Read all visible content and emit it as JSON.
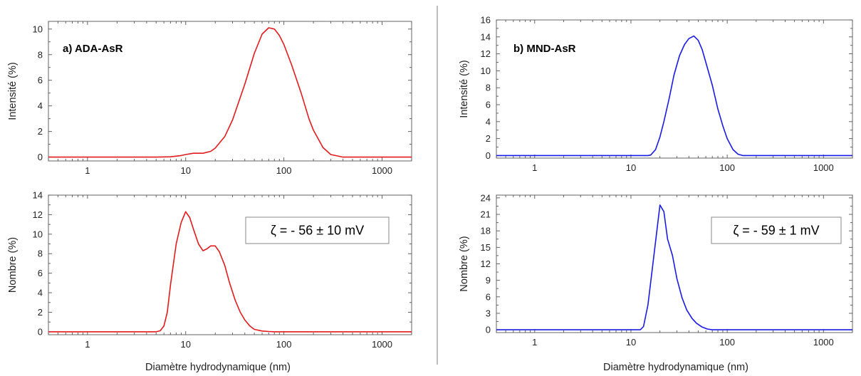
{
  "figure": {
    "xlabel_left": "Diamètre hydrodynamique (nm)",
    "xlabel_right": "Diamètre hydrodynamique (nm)"
  },
  "chart_data": [
    {
      "id": "a-intensity",
      "type": "line",
      "title": "a) ADA-AsR",
      "xlabel": "",
      "ylabel": "Intensité (%)",
      "xscale": "log",
      "xlim": [
        0.4,
        2000
      ],
      "ylim": [
        -0.3,
        10.6
      ],
      "xticks": [
        1,
        10,
        100,
        1000
      ],
      "yticks": [
        0,
        2,
        4,
        6,
        8,
        10
      ],
      "color": "#e41a1c",
      "x": [
        0.4,
        5,
        7,
        9,
        10,
        12,
        15,
        18,
        20,
        25,
        30,
        40,
        50,
        60,
        70,
        80,
        90,
        100,
        120,
        150,
        180,
        200,
        250,
        300,
        400,
        2000
      ],
      "y": [
        0,
        0,
        0.02,
        0.12,
        0.2,
        0.3,
        0.3,
        0.45,
        0.7,
        1.6,
        2.9,
        5.7,
        8.1,
        9.6,
        10.1,
        10.0,
        9.5,
        8.8,
        7.2,
        5.0,
        3.0,
        2.1,
        0.75,
        0.2,
        0,
        0
      ]
    },
    {
      "id": "a-number",
      "type": "line",
      "xlabel": "Diamètre hydrodynamique (nm)",
      "ylabel": "Nombre (%)",
      "xscale": "log",
      "xlim": [
        0.4,
        2000
      ],
      "ylim": [
        -0.3,
        14
      ],
      "xticks": [
        1,
        10,
        100,
        1000
      ],
      "yticks": [
        0,
        2,
        4,
        6,
        8,
        10,
        12,
        14
      ],
      "color": "#e41a1c",
      "annotation": "ζ = - 56 ± 10 mV",
      "x": [
        0.4,
        5,
        5.5,
        6,
        6.5,
        7,
        8,
        9,
        10,
        11,
        12,
        13.5,
        15,
        16.5,
        18,
        20,
        22,
        25,
        28,
        32,
        36,
        40,
        45,
        50,
        60,
        70,
        80,
        90,
        100,
        2000
      ],
      "y": [
        0,
        0,
        0.1,
        0.6,
        2.0,
        4.8,
        9.0,
        11.2,
        12.3,
        11.7,
        10.5,
        9.0,
        8.3,
        8.5,
        8.8,
        8.8,
        8.2,
        6.8,
        5.0,
        3.2,
        2.0,
        1.2,
        0.6,
        0.25,
        0.08,
        0.03,
        0,
        0,
        0,
        0
      ]
    },
    {
      "id": "b-intensity",
      "type": "line",
      "title": "b) MND-AsR",
      "xlabel": "",
      "ylabel": "Intensité (%)",
      "xscale": "log",
      "xlim": [
        0.4,
        2000
      ],
      "ylim": [
        -0.3,
        16
      ],
      "xticks": [
        1,
        10,
        100,
        1000
      ],
      "yticks": [
        0,
        2,
        4,
        6,
        8,
        10,
        12,
        14,
        16
      ],
      "color": "#1a1ae6",
      "x": [
        0.4,
        15,
        16,
        18,
        20,
        22,
        25,
        28,
        32,
        36,
        40,
        45,
        50,
        55,
        60,
        70,
        80,
        90,
        100,
        115,
        130,
        145,
        2000
      ],
      "y": [
        0,
        0,
        0.05,
        0.7,
        2.2,
        4.0,
        6.8,
        9.5,
        11.8,
        13.1,
        13.8,
        14.1,
        13.6,
        12.5,
        11.0,
        8.3,
        5.5,
        3.5,
        2.0,
        0.7,
        0.15,
        0,
        0
      ]
    },
    {
      "id": "b-number",
      "type": "line",
      "xlabel": "Diamètre hydrodynamique (nm)",
      "ylabel": "Nombre (%)",
      "xscale": "log",
      "xlim": [
        0.4,
        2000
      ],
      "ylim": [
        -0.5,
        24.5
      ],
      "xticks": [
        1,
        10,
        100,
        1000
      ],
      "yticks": [
        0,
        3,
        6,
        9,
        12,
        15,
        18,
        21,
        24
      ],
      "color": "#1a1ae6",
      "annotation": "ζ = - 59 ± 1 mV",
      "x": [
        0.4,
        12.5,
        13.5,
        15,
        16.5,
        18,
        20,
        22,
        24,
        27,
        30,
        34,
        38,
        43,
        48,
        55,
        62,
        70,
        2000
      ],
      "y": [
        0,
        0,
        0.6,
        4.5,
        10.5,
        16.0,
        22.7,
        21.5,
        16.5,
        13.5,
        9.3,
        5.8,
        3.6,
        2.1,
        1.2,
        0.5,
        0.15,
        0,
        0
      ]
    }
  ]
}
